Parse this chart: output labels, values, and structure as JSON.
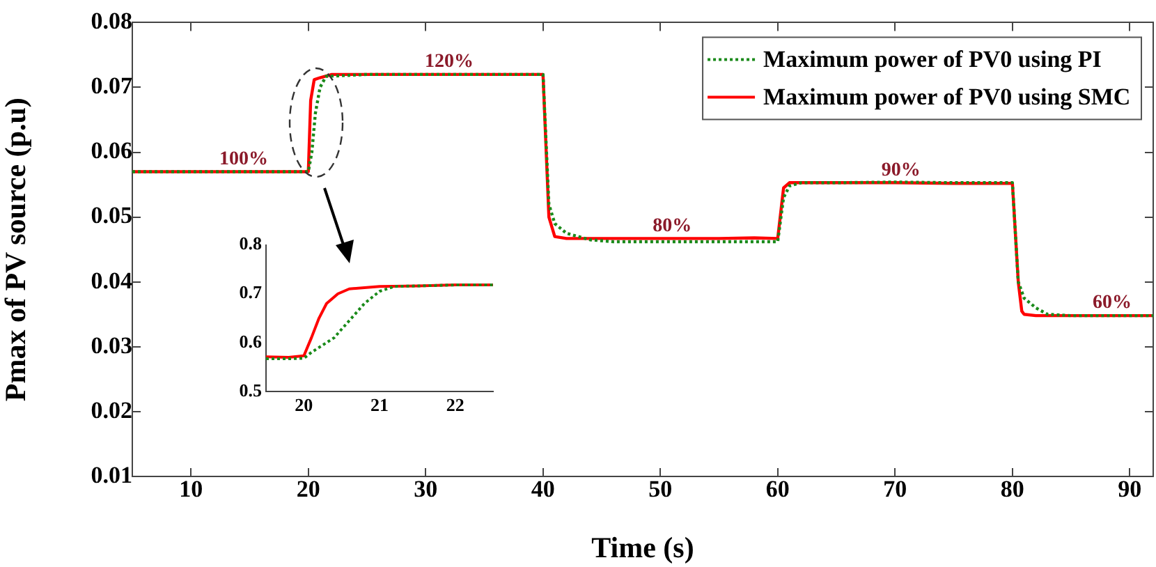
{
  "chart_data": [
    {
      "type": "line",
      "xlabel": "Time (s)",
      "ylabel": "Pmax of PV source (p.u)",
      "xlim": [
        5,
        92
      ],
      "ylim": [
        0.01,
        0.08
      ],
      "xticks": [
        10,
        20,
        30,
        40,
        50,
        60,
        70,
        80,
        90
      ],
      "yticks": [
        0.01,
        0.02,
        0.03,
        0.04,
        0.05,
        0.06,
        0.07,
        0.08
      ],
      "grid": false,
      "legend": "top right",
      "marker": "none",
      "series": [
        {
          "name": "Maximum power of PV0 using PI",
          "color": "#1a8a1a",
          "line_style": "dotted",
          "x": [
            5,
            10,
            15,
            20,
            20.3,
            20.6,
            21,
            21.5,
            25,
            30,
            35,
            40,
            40.5,
            41,
            42,
            44,
            46,
            50,
            55,
            60,
            60.5,
            61,
            62,
            65,
            70,
            75,
            80,
            80.5,
            81,
            82,
            83,
            85,
            90,
            92
          ],
          "values": [
            0.057,
            0.057,
            0.057,
            0.057,
            0.06,
            0.066,
            0.07,
            0.0717,
            0.072,
            0.072,
            0.072,
            0.072,
            0.052,
            0.049,
            0.0475,
            0.0465,
            0.0462,
            0.0462,
            0.0462,
            0.0462,
            0.053,
            0.0548,
            0.0553,
            0.0553,
            0.0554,
            0.0553,
            0.0553,
            0.04,
            0.0375,
            0.036,
            0.035,
            0.0348,
            0.0348,
            0.0348
          ]
        },
        {
          "name": "Maximum power of PV0 using SMC",
          "color": "#ff0000",
          "line_style": "solid",
          "x": [
            5,
            10,
            15,
            20,
            20.2,
            20.5,
            21,
            22,
            25,
            30,
            35,
            40,
            40.5,
            41,
            42,
            45,
            50,
            55,
            58,
            60,
            60.5,
            61,
            62,
            65,
            70,
            75,
            80,
            80.5,
            80.8,
            81,
            82,
            85,
            90,
            92
          ],
          "values": [
            0.057,
            0.057,
            0.057,
            0.057,
            0.068,
            0.0712,
            0.0715,
            0.072,
            0.072,
            0.072,
            0.072,
            0.072,
            0.05,
            0.047,
            0.0467,
            0.0467,
            0.0467,
            0.0467,
            0.0468,
            0.0467,
            0.0545,
            0.0553,
            0.0553,
            0.0553,
            0.0553,
            0.0552,
            0.0552,
            0.04,
            0.0355,
            0.035,
            0.0348,
            0.0348,
            0.0348,
            0.0348
          ]
        }
      ],
      "annotations": [
        {
          "text": "100%",
          "x": 14.5,
          "y": 0.057
        },
        {
          "text": "120%",
          "x": 32,
          "y": 0.072
        },
        {
          "text": "80%",
          "x": 51,
          "y": 0.0467
        },
        {
          "text": "90%",
          "x": 70.5,
          "y": 0.0553
        },
        {
          "text": "60%",
          "x": 88.5,
          "y": 0.0348
        }
      ]
    },
    {
      "type": "line",
      "xlim": [
        19.5,
        22.5
      ],
      "ylim": [
        0.5,
        0.8
      ],
      "xticks": [
        20,
        21,
        22
      ],
      "yticks": [
        0.5,
        0.6,
        0.7,
        0.8
      ],
      "grid": false,
      "legend": false,
      "marker": "none",
      "series": [
        {
          "color": "#1a8a1a",
          "line_style": "dotted",
          "x": [
            19.5,
            19.8,
            20,
            20.1,
            20.2,
            20.4,
            20.6,
            20.8,
            21,
            21.2,
            21.5,
            22,
            22.5
          ],
          "values": [
            0.567,
            0.567,
            0.568,
            0.58,
            0.59,
            0.61,
            0.645,
            0.68,
            0.705,
            0.715,
            0.716,
            0.718,
            0.718
          ]
        },
        {
          "color": "#ff0000",
          "line_style": "solid",
          "x": [
            19.5,
            19.8,
            20,
            20.1,
            20.2,
            20.3,
            20.45,
            20.6,
            21,
            21.5,
            22,
            22.5
          ],
          "values": [
            0.571,
            0.57,
            0.573,
            0.61,
            0.65,
            0.68,
            0.7,
            0.71,
            0.715,
            0.716,
            0.718,
            0.718
          ]
        }
      ]
    }
  ]
}
